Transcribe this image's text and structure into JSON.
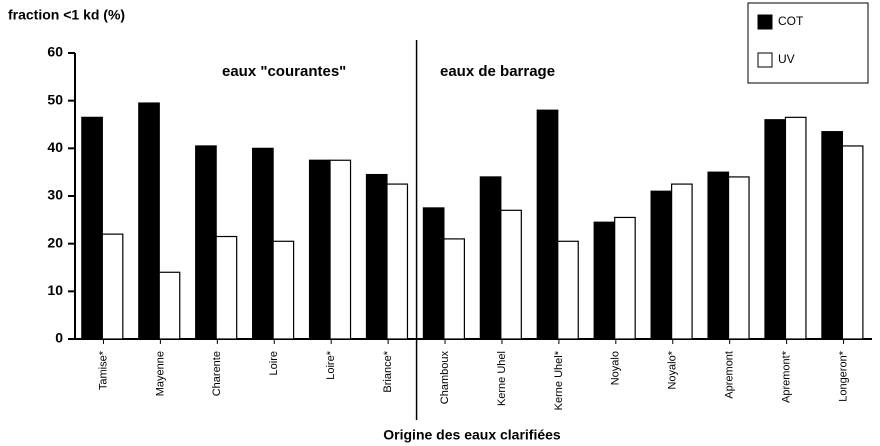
{
  "chart_data": {
    "type": "bar",
    "y_label": "fraction <1 kd (%)",
    "x_label": "Origine des eaux clarifiées",
    "annotations": [
      "eaux \"courantes\"",
      "eaux de barrage"
    ],
    "categories": [
      "Tamise*",
      "Mayenne",
      "Charente",
      "Loire",
      "Loire*",
      "Briance*",
      "Chamboux",
      "Kerne Uhel",
      "Kerne Uhel*",
      "Noyalo",
      "Noyalo*",
      "Apremont",
      "Apremont*",
      "Longeron*"
    ],
    "series": [
      {
        "name": "COT",
        "color": "#000000",
        "values": [
          46.5,
          49.5,
          40.5,
          40,
          37.5,
          34.5,
          27.5,
          34,
          48,
          24.5,
          31,
          35,
          46,
          43.5
        ]
      },
      {
        "name": "UV",
        "color": "#ffffff",
        "values": [
          22,
          14,
          21.5,
          20.5,
          37.5,
          32.5,
          21,
          27,
          20.5,
          25.5,
          32.5,
          34,
          46.5,
          40.5
        ]
      }
    ],
    "ylim": [
      0,
      60
    ],
    "yticks": [
      0,
      10,
      20,
      30,
      40,
      50,
      60
    ]
  }
}
